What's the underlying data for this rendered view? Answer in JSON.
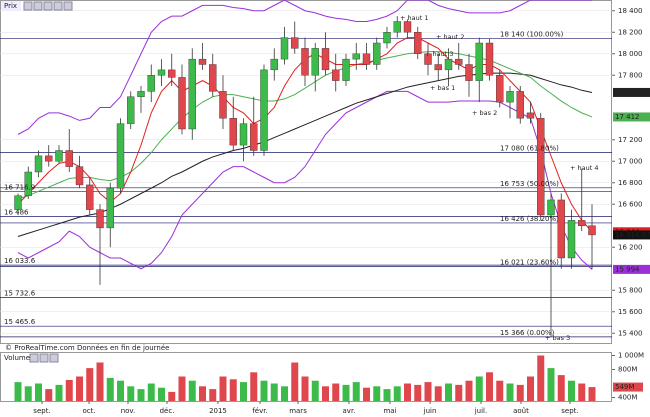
{
  "chart_data": [
    {
      "type": "candlestick",
      "title": "Prix",
      "source": "© ProRealTime.com  Données en fin de journée",
      "categories": [
        null,
        null,
        null,
        null,
        null,
        null,
        null,
        null,
        null,
        null,
        null,
        null,
        null,
        null,
        null,
        null,
        null,
        null,
        null,
        null,
        null,
        null,
        null,
        null,
        null,
        null,
        null,
        null,
        null,
        null,
        null,
        null,
        null,
        null,
        null,
        null,
        null,
        null,
        null,
        null,
        null,
        null,
        null,
        null,
        null,
        null,
        null,
        null,
        null,
        null,
        null,
        null,
        null,
        null,
        null,
        null,
        null
      ],
      "open": [
        16550,
        16680,
        16900,
        17050,
        17000,
        17100,
        16950,
        16780,
        16550,
        16380,
        16750,
        17350,
        17600,
        17650,
        17800,
        17850,
        17780,
        17300,
        17950,
        17900,
        17650,
        17400,
        17150,
        17350,
        17100,
        17850,
        17950,
        18150,
        18050,
        17800,
        18050,
        17850,
        17750,
        17950,
        18000,
        17900,
        18100,
        18200,
        18300,
        18200,
        18000,
        17900,
        17850,
        17950,
        17900,
        17750,
        18100,
        17800,
        17550,
        17650,
        17450,
        17400,
        16500,
        16640,
        16100,
        16450,
        16400
      ],
      "high": [
        16700,
        16950,
        17100,
        17150,
        17150,
        17300,
        17050,
        16850,
        16600,
        16800,
        17400,
        17650,
        17700,
        17900,
        17950,
        18000,
        17900,
        18050,
        18100,
        18000,
        17800,
        17600,
        17400,
        17600,
        17900,
        18050,
        18250,
        18300,
        18150,
        18100,
        18200,
        18000,
        18000,
        18100,
        18100,
        18150,
        18250,
        18350,
        18320,
        18250,
        18100,
        18000,
        18050,
        18100,
        18000,
        18150,
        18140,
        17850,
        17700,
        17700,
        17550,
        17450,
        16700,
        16700,
        16550,
        16930,
        16600
      ],
      "low": [
        16500,
        16650,
        16850,
        16950,
        16980,
        16900,
        16750,
        16500,
        15850,
        16200,
        16700,
        17300,
        17450,
        17550,
        17700,
        17700,
        17250,
        17200,
        17850,
        17600,
        17300,
        17100,
        17000,
        17050,
        17050,
        17750,
        17900,
        18000,
        17700,
        17650,
        17800,
        17650,
        17700,
        17850,
        17850,
        17850,
        18050,
        18150,
        18150,
        17950,
        17800,
        17750,
        17700,
        17850,
        17600,
        17550,
        17750,
        17500,
        17400,
        17350,
        17350,
        16450,
        15366,
        16000,
        16000,
        16350,
        15994
      ],
      "close": [
        16680,
        16900,
        17050,
        17000,
        17100,
        16950,
        16780,
        16550,
        16380,
        16750,
        17350,
        17600,
        17650,
        17800,
        17850,
        17780,
        17300,
        17950,
        17900,
        17650,
        17400,
        17150,
        17350,
        17100,
        17850,
        17950,
        18150,
        18050,
        17800,
        18050,
        17850,
        17750,
        17950,
        18000,
        17900,
        18100,
        18200,
        18300,
        18200,
        18000,
        17900,
        17850,
        17950,
        17900,
        17750,
        18100,
        17800,
        17550,
        17650,
        17400,
        17400,
        16500,
        16640,
        16100,
        16450,
        16400,
        16314.67
      ],
      "up_color": "#3dbb4a",
      "down_color": "#e0474c",
      "last_label": "16 314.67",
      "last_color": "#111111",
      "ylim": [
        15300,
        18500
      ],
      "yticks": [
        {
          "value": 18400,
          "label": "18 400"
        },
        {
          "value": 18200,
          "label": "18 200"
        },
        {
          "value": 18000,
          "label": "18 000"
        },
        {
          "value": 17800,
          "label": "17 800"
        },
        {
          "value": 17200,
          "label": "17 200"
        },
        {
          "value": 17000,
          "label": "17 000"
        },
        {
          "value": 16800,
          "label": "16 800"
        },
        {
          "value": 16600,
          "label": "16 600"
        },
        {
          "value": 16200,
          "label": "16 200"
        },
        {
          "value": 15800,
          "label": "15 800"
        },
        {
          "value": 15600,
          "label": "15 600"
        },
        {
          "value": 15400,
          "label": "15 400"
        }
      ],
      "xticks": [
        {
          "value": 2.34,
          "label": "sept."
        },
        {
          "value": 6.93,
          "label": "oct."
        },
        {
          "value": 10.73,
          "label": "nov."
        },
        {
          "value": 14.54,
          "label": "déc."
        },
        {
          "value": 19.51,
          "label": "2015"
        },
        {
          "value": 23.61,
          "label": "févr."
        },
        {
          "value": 27.32,
          "label": "mars"
        },
        {
          "value": 32.29,
          "label": "avr."
        },
        {
          "value": 36.29,
          "label": "mai"
        },
        {
          "value": 40.2,
          "label": "juin"
        },
        {
          "value": 45.17,
          "label": "juil."
        },
        {
          "value": 49.07,
          "label": "août"
        },
        {
          "value": 53.85,
          "label": "sept."
        }
      ],
      "grid": true,
      "lines": [
        {
          "color": "#9b30d9",
          "last_label": null,
          "values": [
            17250,
            17300,
            17400,
            17450,
            17450,
            17420,
            17380,
            17400,
            17500,
            17500,
            17600,
            17800,
            18000,
            18200,
            18300,
            18350,
            18350,
            18400,
            18450,
            18450,
            18450,
            18430,
            18420,
            18400,
            18400,
            18450,
            18500,
            18450,
            18400,
            18380,
            18350,
            18330,
            18320,
            18300,
            18300,
            18320,
            18350,
            18400,
            18500,
            18500,
            18500,
            18450,
            18420,
            18400,
            18380,
            18380,
            18380,
            18380,
            18400,
            18450,
            18500,
            18500,
            18500,
            18500,
            18500,
            18500,
            18500
          ]
        },
        {
          "color": "#9b30d9",
          "last_label": "15 994",
          "values": [
            16150,
            16100,
            16150,
            16200,
            16250,
            16350,
            16300,
            16200,
            16150,
            16100,
            16100,
            16050,
            16000,
            16050,
            16150,
            16300,
            16500,
            16600,
            16700,
            16800,
            16900,
            16950,
            16950,
            16900,
            16850,
            16800,
            16800,
            16850,
            16950,
            17100,
            17250,
            17350,
            17450,
            17500,
            17550,
            17600,
            17650,
            17650,
            17650,
            17600,
            17550,
            17550,
            17550,
            17560,
            17560,
            17560,
            17560,
            17550,
            17500,
            17450,
            17400,
            17100,
            16700,
            16400,
            16200,
            16080,
            15994
          ]
        },
        {
          "color": "#222222",
          "last_label": "17 640",
          "values": [
            16300,
            16330,
            16360,
            16390,
            16420,
            16450,
            16480,
            16500,
            16520,
            16560,
            16600,
            16650,
            16700,
            16750,
            16800,
            16860,
            16900,
            16950,
            17000,
            17040,
            17070,
            17100,
            17120,
            17150,
            17180,
            17220,
            17260,
            17300,
            17340,
            17380,
            17420,
            17460,
            17500,
            17540,
            17570,
            17600,
            17630,
            17660,
            17690,
            17710,
            17730,
            17750,
            17770,
            17790,
            17800,
            17810,
            17820,
            17820,
            17820,
            17810,
            17800,
            17770,
            17740,
            17710,
            17690,
            17660,
            17640
          ]
        },
        {
          "color": "#4caf50",
          "last_label": "17 412",
          "values": [
            16650,
            16680,
            16720,
            16760,
            16800,
            16840,
            16850,
            16850,
            16830,
            16820,
            16850,
            16900,
            16980,
            17080,
            17200,
            17300,
            17400,
            17480,
            17550,
            17600,
            17620,
            17620,
            17600,
            17580,
            17560,
            17560,
            17580,
            17620,
            17680,
            17740,
            17800,
            17840,
            17870,
            17900,
            17920,
            17940,
            17960,
            17980,
            18000,
            18010,
            18020,
            18020,
            18010,
            18000,
            17980,
            17960,
            17940,
            17900,
            17860,
            17820,
            17780,
            17700,
            17630,
            17560,
            17500,
            17450,
            17412
          ]
        },
        {
          "color": "#e02020",
          "last_label": "16 344",
          "values": [
            16600,
            16700,
            16800,
            16900,
            16980,
            17000,
            16950,
            16850,
            16700,
            16620,
            16700,
            16900,
            17150,
            17450,
            17650,
            17750,
            17650,
            17700,
            17750,
            17700,
            17600,
            17500,
            17450,
            17350,
            17400,
            17500,
            17700,
            17850,
            17950,
            18000,
            17950,
            17900,
            17900,
            17900,
            17900,
            17950,
            18000,
            18100,
            18150,
            18150,
            18100,
            18050,
            17950,
            17900,
            17850,
            17900,
            17900,
            17850,
            17750,
            17650,
            17550,
            17300,
            17050,
            16800,
            16600,
            16450,
            16344
          ]
        }
      ],
      "level_color": "#1c1c6b",
      "levels": [
        {
          "value": 16716.9,
          "label": "16 716.9"
        },
        {
          "value": 16486,
          "label": "16 486"
        },
        {
          "value": 16033.6,
          "label": "16 033.6"
        },
        {
          "value": 15732.6,
          "label": "15 732.6"
        },
        {
          "value": 15465.6,
          "label": "15 465.6"
        }
      ],
      "fib_levels": [
        {
          "value": 18140,
          "label": "18 140 (100.00%)"
        },
        {
          "value": 17080,
          "label": "17 080 (61.80%)"
        },
        {
          "value": 16753,
          "label": "16 753 (50.00%)"
        },
        {
          "value": 16426,
          "label": "16 426 (38.20%)"
        },
        {
          "value": 16021,
          "label": "16 021 (23.60%)"
        },
        {
          "value": 15366,
          "label": "15 366 (0.00%)"
        }
      ],
      "annotations": [
        "+ haut 1",
        "+ haut 2",
        "+ haut 3",
        "+ bas 1",
        "+ bas 2",
        "+ haut 4",
        "+ bas 3"
      ]
    },
    {
      "type": "bar",
      "title": "Volume",
      "values": [
        620,
        560,
        600,
        520,
        580,
        650,
        700,
        820,
        900,
        680,
        640,
        560,
        520,
        600,
        540,
        480,
        700,
        640,
        560,
        520,
        700,
        660,
        620,
        760,
        640,
        600,
        560,
        900,
        700,
        640,
        560,
        600,
        580,
        620,
        540,
        560,
        520,
        560,
        600,
        580,
        620,
        560,
        600,
        580,
        640,
        700,
        760,
        640,
        600,
        580,
        700,
        1000,
        820,
        720,
        640,
        600,
        549
      ],
      "last_label": "549M",
      "last_color": "#e0474c",
      "ylim": [
        350,
        1050
      ],
      "yticks": [
        {
          "value": 1000,
          "label": "1 000M"
        },
        {
          "value": 800,
          "label": "800M"
        },
        {
          "value": 400,
          "label": "400M"
        }
      ]
    }
  ]
}
